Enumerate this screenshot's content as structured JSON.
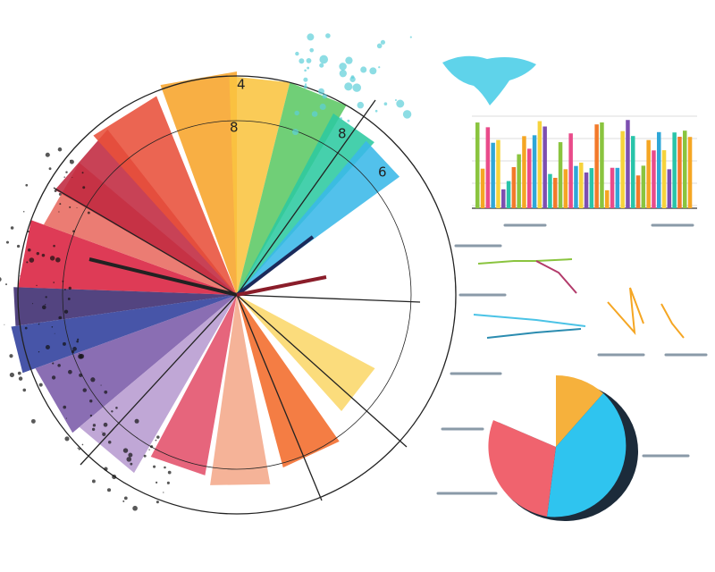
{
  "radial_labels": [
    "4",
    "8",
    "8",
    "6"
  ]
}
